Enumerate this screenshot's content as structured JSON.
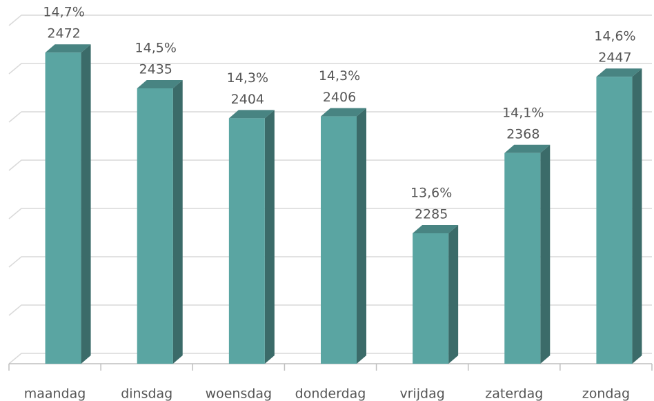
{
  "chart_data": {
    "type": "bar3d",
    "categories": [
      "maandag",
      "dinsdag",
      "woensdag",
      "donderdag",
      "vrijdag",
      "zaterdag",
      "zondag"
    ],
    "values": [
      2472,
      2435,
      2404,
      2406,
      2285,
      2368,
      2447
    ],
    "percentages": [
      14.7,
      14.5,
      14.3,
      14.3,
      13.6,
      14.1,
      14.6
    ],
    "percentage_labels": [
      "14,7%",
      "14,5%",
      "14,3%",
      "14,3%",
      "13,6%",
      "14,1%",
      "14,6%"
    ],
    "color": "#5aa5a2",
    "ylim": [
      2150,
      2500
    ],
    "yticks": [
      2150,
      2200,
      2250,
      2300,
      2350,
      2400,
      2450,
      2500
    ],
    "grid": true
  }
}
